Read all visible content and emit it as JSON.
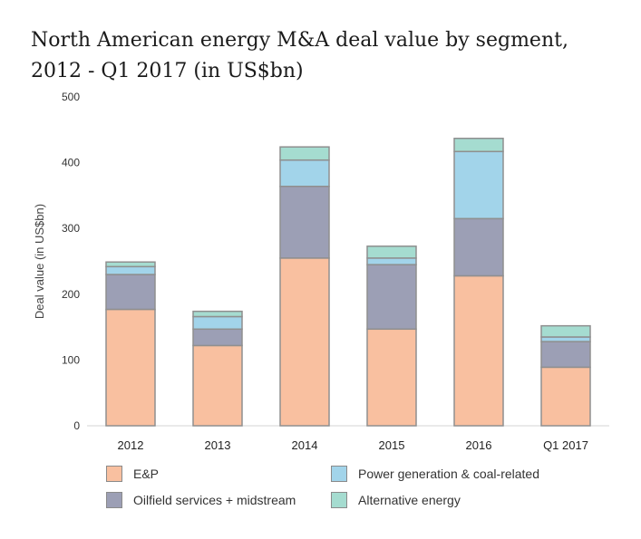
{
  "title": {
    "line1": "North American energy M&A deal value by segment,",
    "line2": "2012 - Q1 2017 (in US$bn)"
  },
  "chart_data": {
    "type": "bar",
    "stacked": true,
    "title": "North American energy M&A deal value by segment, 2012 - Q1 2017 (in US$bn)",
    "xlabel": "",
    "ylabel": "Deal value (in US$bn)",
    "ylim": [
      0,
      500
    ],
    "yticks": [
      "0",
      "100",
      "200",
      "300",
      "400",
      "500"
    ],
    "categories": [
      "2012",
      "2013",
      "2014",
      "2015",
      "2016",
      "Q1 2017"
    ],
    "series": [
      {
        "name": "E&P",
        "color": "#f9c0a0",
        "values": [
          177,
          122,
          255,
          147,
          228,
          89
        ]
      },
      {
        "name": "Oilfield services + midstream",
        "color": "#9c9fb5",
        "values": [
          53,
          25,
          109,
          98,
          87,
          39
        ]
      },
      {
        "name": "Power generation & coal-related",
        "color": "#a2d4ea",
        "values": [
          12,
          19,
          40,
          10,
          102,
          7
        ]
      },
      {
        "name": "Alternative energy",
        "color": "#a5dcd0",
        "values": [
          7,
          8,
          20,
          18,
          20,
          17
        ]
      }
    ],
    "legend_position": "bottom"
  },
  "legend": {
    "items": [
      {
        "label": "E&P",
        "color": "#f9c0a0"
      },
      {
        "label": "Power generation & coal-related",
        "color": "#a2d4ea"
      },
      {
        "label": "Oilfield services + midstream",
        "color": "#9c9fb5"
      },
      {
        "label": "Alternative energy",
        "color": "#a5dcd0"
      }
    ]
  }
}
